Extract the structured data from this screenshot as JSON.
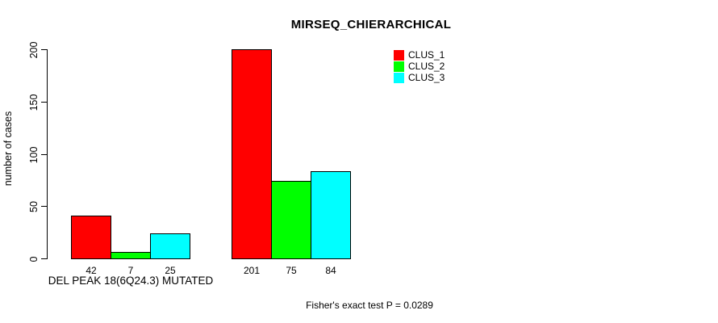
{
  "chart_data": {
    "type": "bar",
    "title": "MIRSEQ_CHIERARCHICAL",
    "ylabel": "number of cases",
    "xlabel": "",
    "ylim": [
      0,
      200
    ],
    "yticks": [
      0,
      50,
      100,
      150,
      200
    ],
    "grid": false,
    "legend_position": "top-right",
    "categories": [
      "DEL PEAK 18(6Q24.3) MUTATED",
      ""
    ],
    "series": [
      {
        "name": "CLUS_1",
        "color": "#ff0000",
        "values": [
          42,
          201
        ]
      },
      {
        "name": "CLUS_2",
        "color": "#00ff00",
        "values": [
          7,
          75
        ]
      },
      {
        "name": "CLUS_3",
        "color": "#00ffff",
        "values": [
          25,
          84
        ]
      }
    ],
    "bar_border_color": "#000000",
    "annotation": "Fisher's exact test P = 0.0289"
  }
}
